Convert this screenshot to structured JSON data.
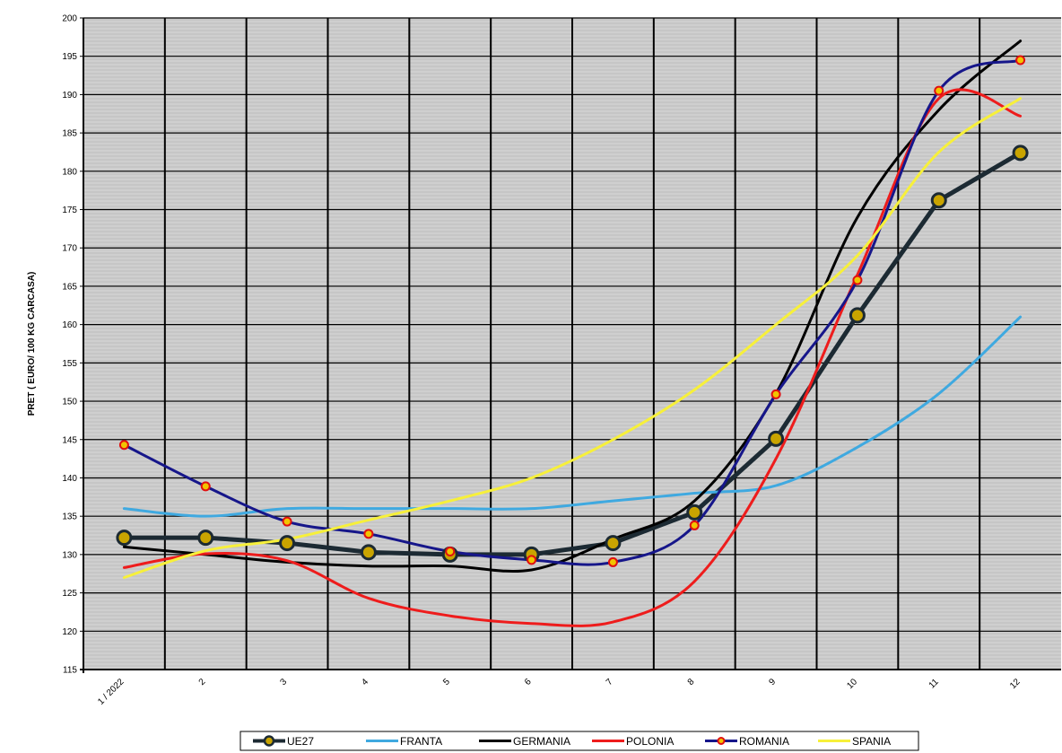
{
  "chart_data": {
    "type": "line",
    "title": "",
    "xlabel": "",
    "ylabel": "PRET ( EURO/ 100 KG CARCASA)",
    "ylim": [
      115,
      200
    ],
    "ytick_step": 5,
    "grid": true,
    "legend_position": "bottom",
    "categories": [
      "1 / 2022",
      "2",
      "3",
      "4",
      "5",
      "6",
      "7",
      "8",
      "9",
      "10",
      "11",
      "12"
    ],
    "series": [
      {
        "name": "UE27",
        "color": "#1c2a33",
        "marker": "circle-gold",
        "values": [
          132.2,
          132.2,
          131.5,
          130.3,
          130.0,
          130.0,
          131.5,
          135.5,
          145.1,
          161.2,
          176.2,
          182.4
        ]
      },
      {
        "name": "FRANTA",
        "color": "#3fa9e0",
        "marker": "none",
        "values": [
          136.0,
          135.0,
          136.0,
          136.0,
          136.0,
          136.0,
          137.0,
          138.0,
          139.0,
          144.0,
          151.0,
          161.0
        ]
      },
      {
        "name": "GERMANIA",
        "color": "#000000",
        "marker": "none",
        "values": [
          131.0,
          130.0,
          129.0,
          128.5,
          128.5,
          128.0,
          132.0,
          137.0,
          151.0,
          174.0,
          188.0,
          197.0
        ]
      },
      {
        "name": "POLONIA",
        "color": "#ee1c1c",
        "marker": "none",
        "values": [
          128.3,
          130.1,
          129.2,
          124.3,
          122.0,
          121.0,
          121.2,
          126.5,
          142.5,
          166.5,
          189.5,
          187.2
        ]
      },
      {
        "name": "ROMANIA",
        "color": "#16168a",
        "marker": "diamond-red",
        "values": [
          144.3,
          138.9,
          134.3,
          132.7,
          130.4,
          129.3,
          129.0,
          133.8,
          150.9,
          165.8,
          190.5,
          194.5
        ]
      },
      {
        "name": "SPANIA",
        "color": "#f7f03a",
        "marker": "none",
        "values": [
          127.0,
          130.5,
          132.0,
          134.5,
          137.0,
          140.0,
          145.0,
          151.5,
          160.0,
          169.0,
          182.5,
          189.5
        ]
      }
    ]
  }
}
